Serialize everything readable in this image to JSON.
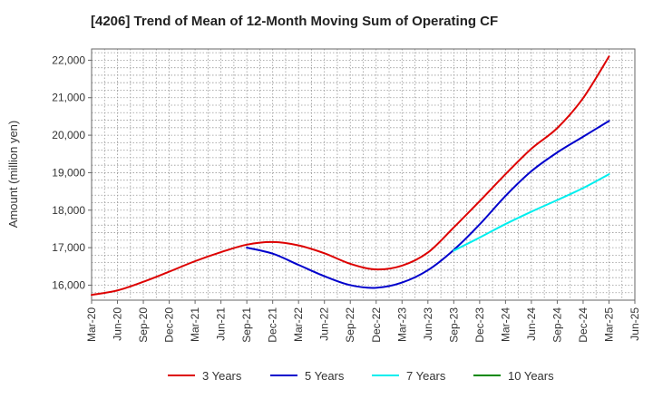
{
  "chart_data": {
    "type": "line",
    "title": "[4206]  Trend of Mean of 12-Month Moving Sum of Operating CF",
    "xlabel": "",
    "ylabel": "Amount (million yen)",
    "ylim": [
      15600,
      22300
    ],
    "yticks": [
      16000,
      17000,
      18000,
      19000,
      20000,
      21000,
      22000
    ],
    "ytick_labels": [
      "16,000",
      "17,000",
      "18,000",
      "19,000",
      "20,000",
      "21,000",
      "22,000"
    ],
    "categories": [
      "Mar-20",
      "Jun-20",
      "Sep-20",
      "Dec-20",
      "Mar-21",
      "Jun-21",
      "Sep-21",
      "Dec-21",
      "Mar-22",
      "Jun-22",
      "Sep-22",
      "Dec-22",
      "Mar-23",
      "Jun-23",
      "Sep-23",
      "Dec-23",
      "Mar-24",
      "Jun-24",
      "Sep-24",
      "Dec-24",
      "Mar-25",
      "Jun-25"
    ],
    "grid": true,
    "legend_position": "bottom",
    "series": [
      {
        "name": "3 Years",
        "color": "#dd0000",
        "x": [
          0,
          1,
          2,
          3,
          4,
          5,
          6,
          7,
          8,
          9,
          10,
          11,
          12,
          13,
          14,
          15,
          16,
          17,
          18,
          19,
          20
        ],
        "values": [
          15740,
          15860,
          16090,
          16360,
          16640,
          16880,
          17080,
          17150,
          17060,
          16850,
          16570,
          16420,
          16520,
          16870,
          17540,
          18240,
          18960,
          19640,
          20190,
          20990,
          22100
        ]
      },
      {
        "name": "5 Years",
        "color": "#0000cc",
        "x": [
          6,
          7,
          8,
          9,
          10,
          11,
          12,
          13,
          14,
          15,
          16,
          17,
          18,
          19,
          20
        ],
        "values": [
          17000,
          16840,
          16540,
          16240,
          16000,
          15930,
          16070,
          16400,
          16940,
          17620,
          18380,
          19040,
          19540,
          19960,
          20380
        ]
      },
      {
        "name": "7 Years",
        "color": "#00eeee",
        "x": [
          14,
          15,
          16,
          17,
          18,
          19,
          20
        ],
        "values": [
          16920,
          17270,
          17630,
          17960,
          18270,
          18590,
          18960
        ]
      },
      {
        "name": "10 Years",
        "color": "#008800",
        "x": [],
        "values": []
      }
    ]
  }
}
